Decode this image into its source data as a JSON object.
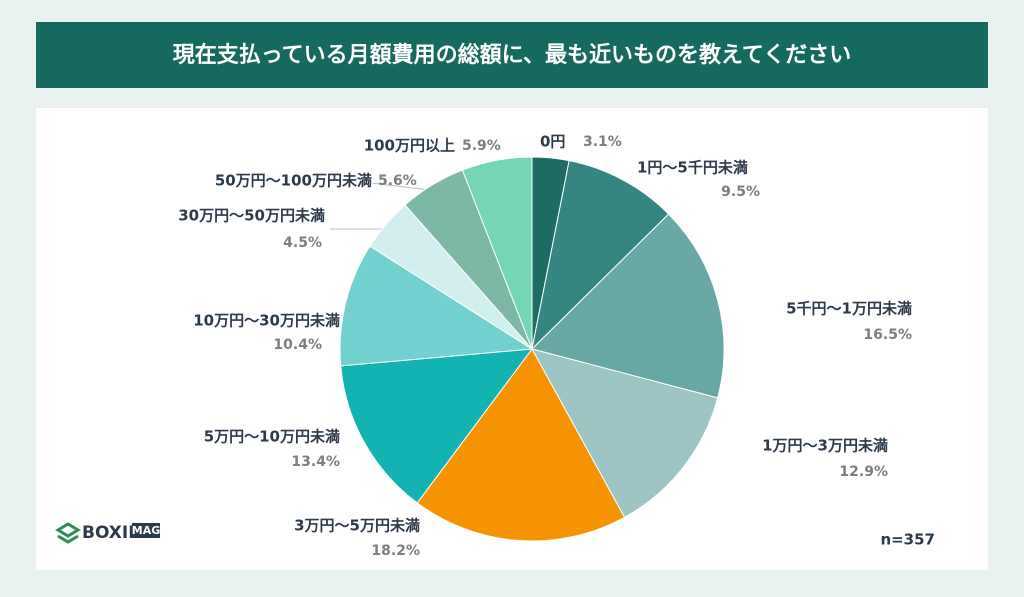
{
  "chart_data": {
    "type": "pie",
    "title": "現在支払っている月額費用の総額に、最も近いものを教えてください",
    "categories": [
      "0円",
      "1円〜5千円未満",
      "5千円〜1万円未満",
      "1万円〜3万円未満",
      "3万円〜5万円未満",
      "5万円〜10万円未満",
      "10万円〜30万円未満",
      "30万円〜50万円未満",
      "50万円〜100万円未満",
      "100万円以上"
    ],
    "values": [
      3.1,
      9.5,
      16.5,
      12.9,
      18.2,
      13.4,
      10.4,
      4.5,
      5.6,
      5.9
    ],
    "value_labels": [
      "3.1%",
      "9.5%",
      "16.5%",
      "12.9%",
      "18.2%",
      "13.4%",
      "10.4%",
      "4.5%",
      "5.6%",
      "5.9%"
    ],
    "colors": [
      "#1e6b66",
      "#358583",
      "#67a8a4",
      "#9cc4c2",
      "#f59300",
      "#13b3b1",
      "#72d1cf",
      "#d3eeee",
      "#7db8a6",
      "#75d6b6"
    ],
    "note": "n=357",
    "logo": {
      "name": "BOXIL",
      "badge": "MAG"
    }
  }
}
